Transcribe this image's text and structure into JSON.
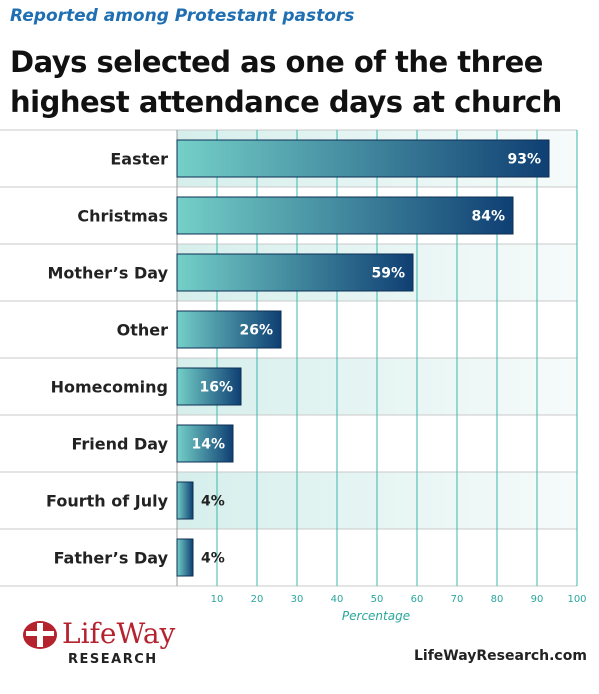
{
  "header": {
    "subtitle": "Reported among Protestant pastors",
    "title": "Days selected as one of the three highest attendance days at church"
  },
  "chart_data": {
    "type": "bar",
    "orientation": "horizontal",
    "categories": [
      "Easter",
      "Christmas",
      "Mother’s Day",
      "Other",
      "Homecoming",
      "Friend Day",
      "Fourth of July",
      "Father’s Day"
    ],
    "values": [
      93,
      84,
      59,
      26,
      16,
      14,
      4,
      4
    ],
    "data_labels": [
      "93%",
      "84%",
      "59%",
      "26%",
      "16%",
      "14%",
      "4%",
      "4%"
    ],
    "xlabel": "Percentage",
    "xlim": [
      0,
      100
    ],
    "xticks": [
      10,
      20,
      30,
      40,
      50,
      60,
      70,
      80,
      90,
      100
    ],
    "grid": true,
    "colors": {
      "bar_light": "#74d0c8",
      "bar_dark": "#0f3f73",
      "grid": "#3bb7ae",
      "band": "#e9f6f4",
      "axis_label": "#2aa79b"
    }
  },
  "logo": {
    "word": "LifeWay",
    "sub": "RESEARCH",
    "color": "#b5232f"
  },
  "footer": {
    "website": "LifeWayResearch.com"
  }
}
